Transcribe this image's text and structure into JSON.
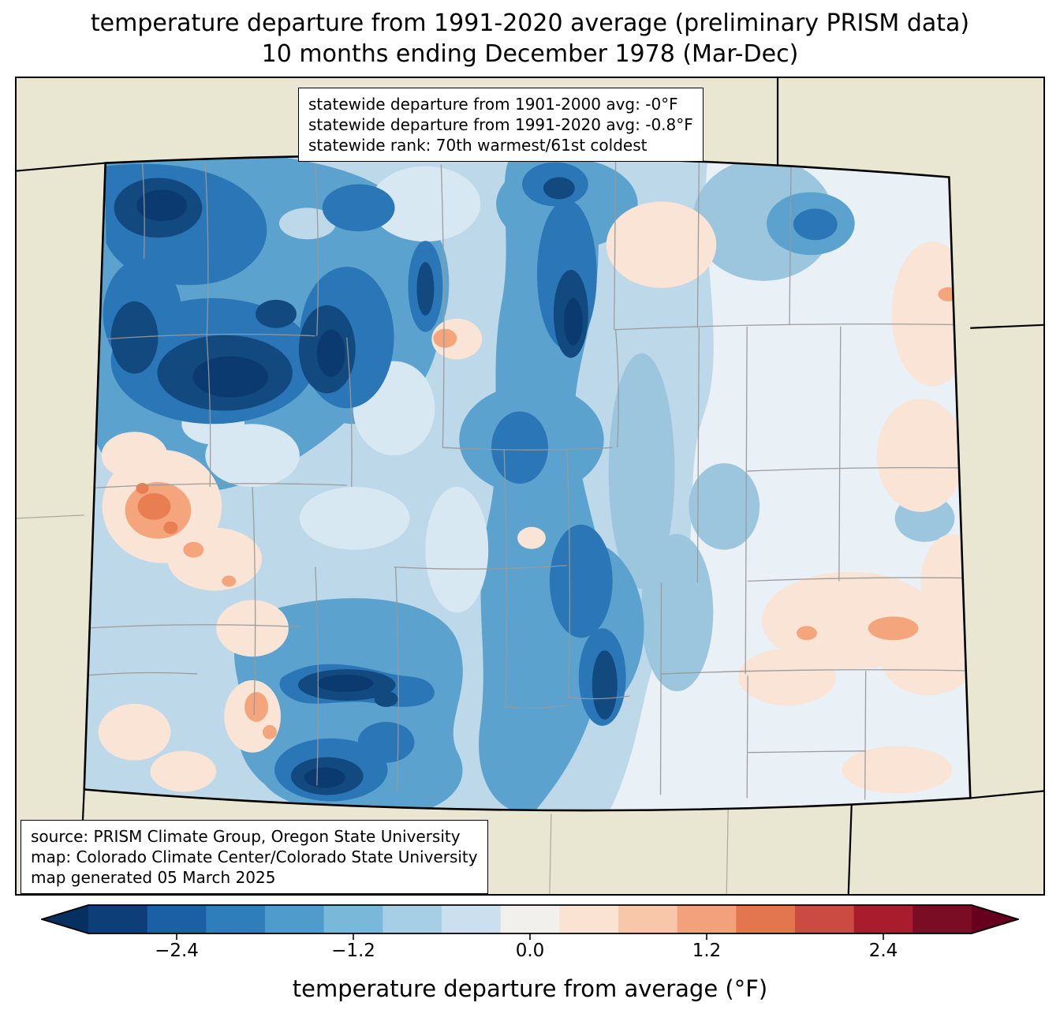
{
  "title": {
    "line1": "temperature departure from 1991-2020 average (preliminary PRISM data)",
    "line2": "10 months ending December 1978 (Mar-Dec)"
  },
  "stats_box": {
    "lines": [
      "statewide departure from 1901-2000 avg: -0°F",
      "statewide departure from 1991-2020 avg: -0.8°F",
      "statewide rank: 70th warmest/61st coldest"
    ]
  },
  "source_box": {
    "lines": [
      "source: PRISM Climate Group, Oregon State University",
      "map: Colorado Climate Center/Colorado State University",
      "map generated 05 March 2025"
    ]
  },
  "colorbar": {
    "label": "temperature departure from average (°F)",
    "ticks": [
      "−2.4",
      "−1.2",
      "0.0",
      "1.2",
      "2.4"
    ],
    "tick_values": [
      -2.4,
      -1.2,
      0.0,
      1.2,
      2.4
    ],
    "range": [
      -3.0,
      3.0
    ],
    "segments": [
      "#0d3e78",
      "#1b5fa5",
      "#2e7ebc",
      "#4f9bcb",
      "#7ab8da",
      "#a6cfe5",
      "#ccdfee",
      "#f1f0ec",
      "#fbe3d4",
      "#f8c6a8",
      "#f2a17c",
      "#e4764f",
      "#cb4a42",
      "#a81c2e",
      "#7a0c23"
    ],
    "arrow_left_color": "#053061",
    "arrow_right_color": "#67001f"
  },
  "map": {
    "region": "Colorado",
    "data_kind": "temperature departure from average (°F), contour fill",
    "outside_fill": "#e9e7d1",
    "state_base_fill": "#bcd8e9",
    "county_line_color": "#999999",
    "state_border_color": "#000000"
  }
}
